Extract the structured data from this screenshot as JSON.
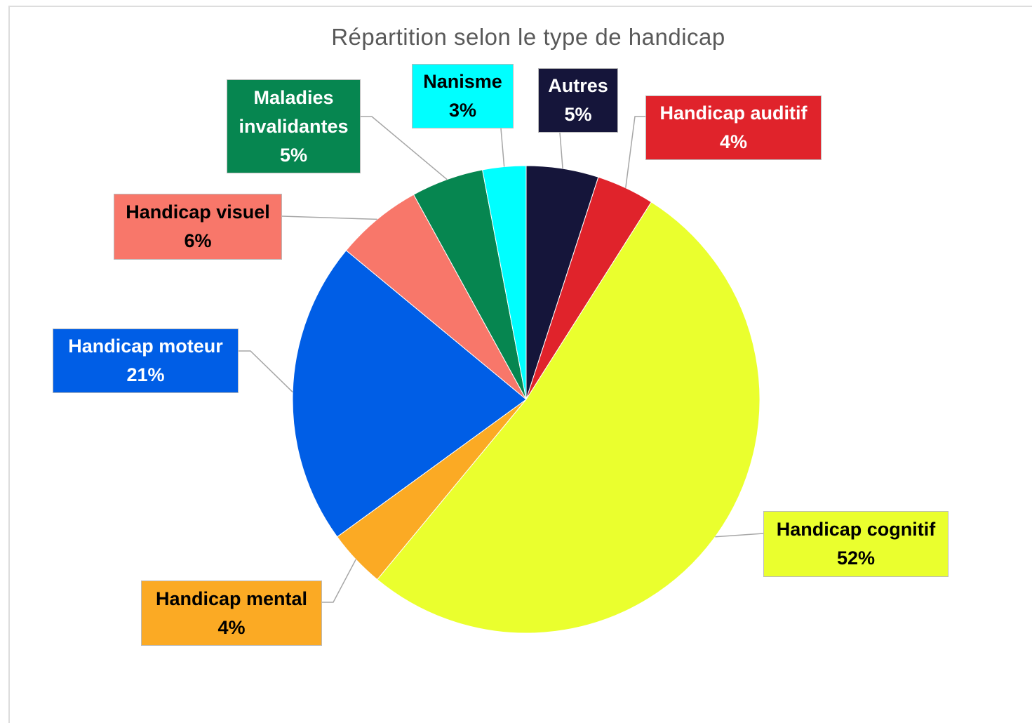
{
  "chart_data": {
    "type": "pie",
    "title": "Répartition selon le type de handicap",
    "categories": [
      "Autres",
      "Handicap auditif",
      "Handicap cognitif",
      "Handicap mental",
      "Handicap moteur",
      "Handicap visuel",
      "Maladies invalidantes",
      "Nanisme"
    ],
    "values": [
      5,
      4,
      52,
      4,
      21,
      6,
      5,
      3
    ],
    "value_labels": [
      "5%",
      "4%",
      "52%",
      "4%",
      "21%",
      "6%",
      "5%",
      "3%"
    ],
    "colors": [
      "#15153a",
      "#e0232b",
      "#eaff2e",
      "#fbaa24",
      "#005ee6",
      "#f8776a",
      "#068650",
      "#00ffff"
    ]
  }
}
